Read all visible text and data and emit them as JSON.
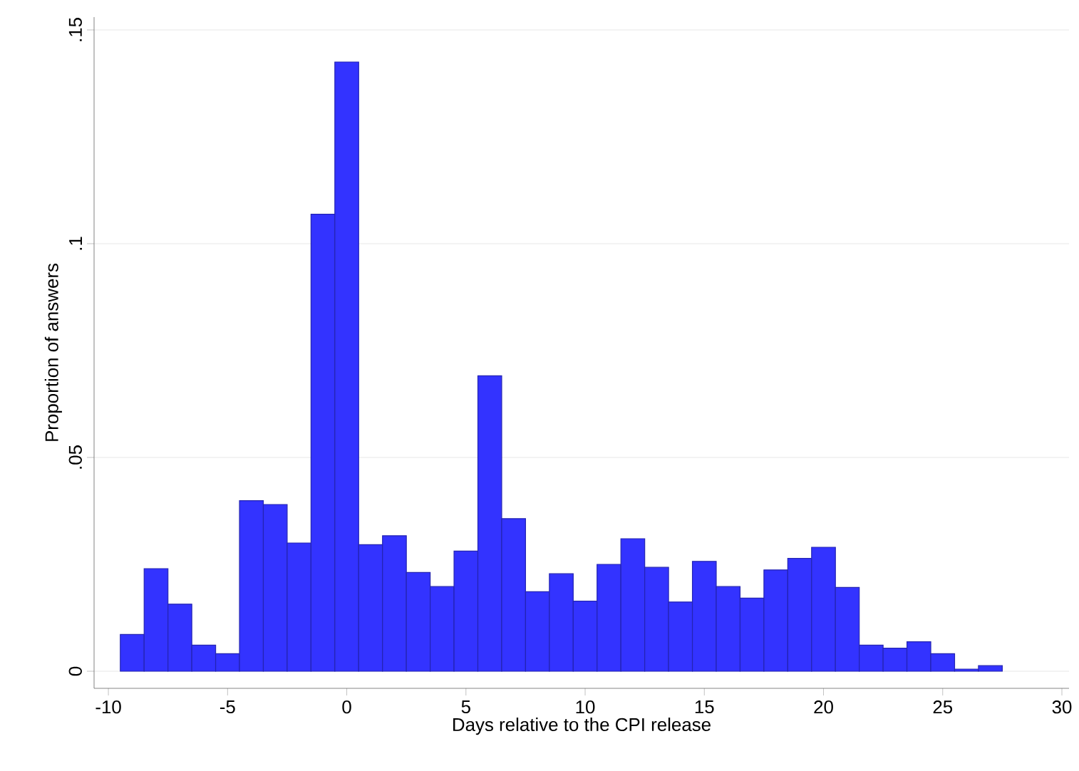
{
  "chart_data": {
    "type": "histogram",
    "xlabel": "Days relative to the CPI release",
    "ylabel": "Proportion of answers",
    "bins": [
      -9.5,
      -8.5,
      -7.5,
      -6.5,
      -5.5,
      -4.5,
      -3.5,
      -2.5,
      -1.5,
      -0.5,
      0.5,
      1.5,
      2.5,
      3.5,
      4.5,
      5.5,
      6.5,
      7.5,
      8.5,
      9.5,
      10.5,
      11.5,
      12.5,
      13.5,
      14.5,
      15.5,
      16.5,
      17.5,
      18.5,
      19.5,
      20.5,
      21.5,
      22.5,
      23.5,
      24.5,
      25.5,
      26.5,
      27.5
    ],
    "values": [
      0.0086,
      0.024,
      0.0157,
      0.0061,
      0.0041,
      0.0399,
      0.039,
      0.03,
      0.1069,
      0.1425,
      0.0296,
      0.0317,
      0.0231,
      0.0198,
      0.0281,
      0.0691,
      0.0357,
      0.0186,
      0.0228,
      0.0164,
      0.025,
      0.031,
      0.0243,
      0.0162,
      0.0257,
      0.0198,
      0.0171,
      0.0237,
      0.0264,
      0.029,
      0.0196,
      0.0061,
      0.0054,
      0.0069,
      0.0041,
      0.0005,
      0.0013
    ],
    "color": "#3333ff",
    "xlim": [
      -10.6,
      30.3
    ],
    "ylim": [
      -0.004,
      0.153
    ],
    "xticks": [
      -10,
      -5,
      0,
      5,
      10,
      15,
      20,
      25,
      30
    ],
    "yticks": [
      0,
      {
        "value": 0.05,
        "label": ".05"
      },
      {
        "value": 0.1,
        "label": ".1"
      },
      {
        "value": 0.15,
        "label": ".15"
      }
    ],
    "grid": "y"
  }
}
